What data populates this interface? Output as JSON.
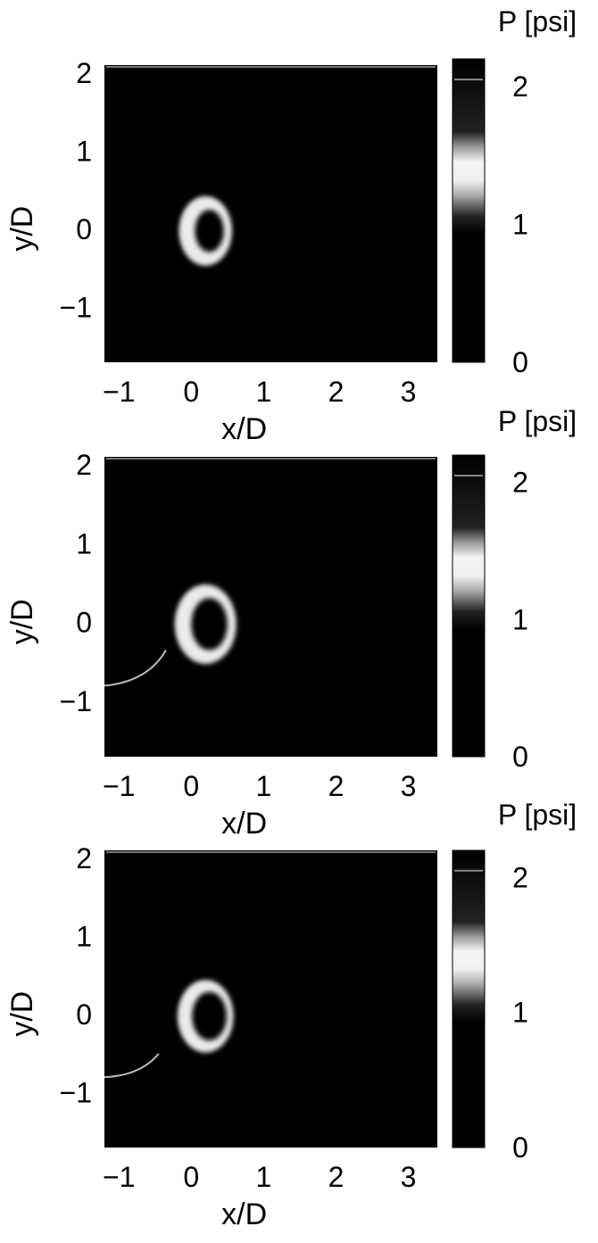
{
  "chart_data": [
    {
      "type": "heatmap",
      "xlabel": "x/D",
      "ylabel": "y/D",
      "xticks": [
        -1,
        0,
        1,
        2,
        3
      ],
      "yticks": [
        -1,
        0,
        1,
        2
      ],
      "xlim": [
        -1.2,
        3.4
      ],
      "ylim": [
        -1.7,
        2.1
      ],
      "colorbar": {
        "title": "P [psi]",
        "ticks": [
          0,
          1,
          2
        ],
        "range": [
          0,
          2.2
        ]
      },
      "features": {
        "ring": {
          "cx": 0.2,
          "cy": -0.02,
          "rx": 0.36,
          "ry": 0.44,
          "inner_rx": 0.2,
          "inner_ry": 0.27,
          "peak_P": 1.3
        },
        "top_edge_line": true,
        "arc": null
      }
    },
    {
      "type": "heatmap",
      "xlabel": "x/D",
      "ylabel": "y/D",
      "xticks": [
        -1,
        0,
        1,
        2,
        3
      ],
      "yticks": [
        -1,
        0,
        1,
        2
      ],
      "xlim": [
        -1.2,
        3.4
      ],
      "ylim": [
        -1.7,
        2.1
      ],
      "colorbar": {
        "title": "P [psi]",
        "ticks": [
          0,
          1,
          2
        ],
        "range": [
          0,
          2.2
        ]
      },
      "features": {
        "ring": {
          "cx": 0.2,
          "cy": -0.02,
          "rx": 0.42,
          "ry": 0.5,
          "inner_rx": 0.25,
          "inner_ry": 0.33,
          "peak_P": 1.3
        },
        "top_edge_line": true,
        "arc": {
          "from": [
            -1.2,
            -0.8
          ],
          "ctrl": [
            -0.6,
            -0.75
          ],
          "to": [
            -0.35,
            -0.35
          ]
        }
      }
    },
    {
      "type": "heatmap",
      "xlabel": "x/D",
      "ylabel": "y/D",
      "xticks": [
        -1,
        0,
        1,
        2,
        3
      ],
      "yticks": [
        -1,
        0,
        1,
        2
      ],
      "xlim": [
        -1.2,
        3.4
      ],
      "ylim": [
        -1.7,
        2.1
      ],
      "colorbar": {
        "title": "P [psi]",
        "ticks": [
          0,
          1,
          2
        ],
        "range": [
          0,
          2.2
        ]
      },
      "features": {
        "ring": {
          "cx": 0.2,
          "cy": -0.02,
          "rx": 0.38,
          "ry": 0.46,
          "inner_rx": 0.24,
          "inner_ry": 0.31,
          "peak_P": 1.2
        },
        "top_edge_line": true,
        "arc": {
          "from": [
            -1.2,
            -0.8
          ],
          "ctrl": [
            -0.7,
            -0.78
          ],
          "to": [
            -0.45,
            -0.5
          ]
        }
      }
    }
  ]
}
